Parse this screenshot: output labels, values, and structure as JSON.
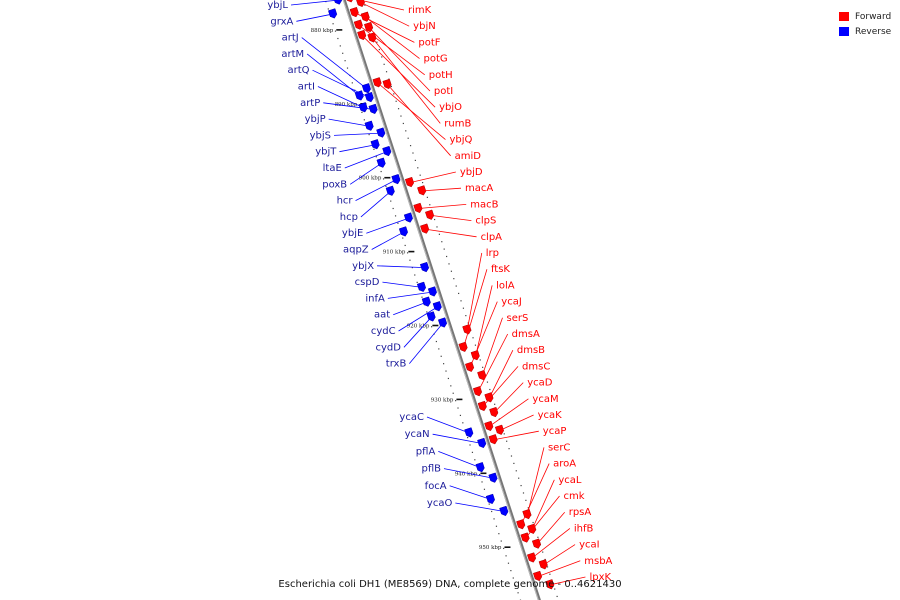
{
  "legend": {
    "forward_label": "Forward",
    "reverse_label": "Reverse",
    "forward_color": "#ff0000",
    "reverse_color": "#0000ff"
  },
  "caption": "Escherichia coli DH1 (ME8569) DNA, complete genome - 0..4621430",
  "chart_data": {
    "type": "genome-map",
    "range_kbp": [
      876,
      958
    ],
    "ticks_kbp": [
      880,
      890,
      900,
      910,
      920,
      930,
      940,
      950
    ],
    "tick_labels": [
      "880 kbp",
      "890 kbp",
      "900 kbp",
      "910 kbp",
      "920 kbp",
      "930 kbp",
      "940 kbp",
      "950 kbp"
    ],
    "forward_genes": [
      {
        "name": "rimK",
        "kbp": 876.5
      },
      {
        "name": "ybjN",
        "kbp": 877.5
      },
      {
        "name": "potF",
        "kbp": 878.5
      },
      {
        "name": "potG",
        "kbp": 879.5
      },
      {
        "name": "potH",
        "kbp": 880.2
      },
      {
        "name": "potI",
        "kbp": 880.9
      },
      {
        "name": "ybjO",
        "kbp": 881.6
      },
      {
        "name": "rumB",
        "kbp": 882.3
      },
      {
        "name": "ybjQ",
        "kbp": 888.0
      },
      {
        "name": "amiD",
        "kbp": 888.6
      },
      {
        "name": "ybjD",
        "kbp": 901.5
      },
      {
        "name": "macA",
        "kbp": 903.0
      },
      {
        "name": "macB",
        "kbp": 905.0
      },
      {
        "name": "clpS",
        "kbp": 906.3
      },
      {
        "name": "clpA",
        "kbp": 907.8
      },
      {
        "name": "lrp",
        "kbp": 921.8
      },
      {
        "name": "ftsK",
        "kbp": 923.8
      },
      {
        "name": "lolA",
        "kbp": 925.3
      },
      {
        "name": "ycaJ",
        "kbp": 926.5
      },
      {
        "name": "serS",
        "kbp": 928.0
      },
      {
        "name": "dmsA",
        "kbp": 929.8
      },
      {
        "name": "dmsB",
        "kbp": 931.0
      },
      {
        "name": "dmsC",
        "kbp": 931.8
      },
      {
        "name": "ycaD",
        "kbp": 933.0
      },
      {
        "name": "ycaM",
        "kbp": 934.5
      },
      {
        "name": "ycaK",
        "kbp": 935.4
      },
      {
        "name": "ycaP",
        "kbp": 936.3
      },
      {
        "name": "serC",
        "kbp": 946.8
      },
      {
        "name": "aroA",
        "kbp": 947.8
      },
      {
        "name": "ycaL",
        "kbp": 948.8
      },
      {
        "name": "cmk",
        "kbp": 949.6
      },
      {
        "name": "rpsA",
        "kbp": 950.8
      },
      {
        "name": "ihfB",
        "kbp": 952.3
      },
      {
        "name": "ycaI",
        "kbp": 953.6
      },
      {
        "name": "msbA",
        "kbp": 954.8
      },
      {
        "name": "lpxK",
        "kbp": 956.3
      }
    ],
    "reverse_genes": [
      {
        "name": "ybjL",
        "kbp": 876.3
      },
      {
        "name": "grxA",
        "kbp": 877.8
      },
      {
        "name": "artJ",
        "kbp": 888.3
      },
      {
        "name": "artM",
        "kbp": 888.9
      },
      {
        "name": "artQ",
        "kbp": 889.5
      },
      {
        "name": "artI",
        "kbp": 890.5
      },
      {
        "name": "artP",
        "kbp": 891.1
      },
      {
        "name": "ybjP",
        "kbp": 893.0
      },
      {
        "name": "ybjS",
        "kbp": 894.3
      },
      {
        "name": "ybjT",
        "kbp": 895.5
      },
      {
        "name": "ltaE",
        "kbp": 896.8
      },
      {
        "name": "poxB",
        "kbp": 898.0
      },
      {
        "name": "hcr",
        "kbp": 900.6
      },
      {
        "name": "hcp",
        "kbp": 901.8
      },
      {
        "name": "ybjE",
        "kbp": 905.8
      },
      {
        "name": "aqpZ",
        "kbp": 907.3
      },
      {
        "name": "ybjX",
        "kbp": 912.5
      },
      {
        "name": "cspD",
        "kbp": 914.8
      },
      {
        "name": "infA",
        "kbp": 915.8
      },
      {
        "name": "aat",
        "kbp": 916.8
      },
      {
        "name": "cydC",
        "kbp": 917.8
      },
      {
        "name": "cydD",
        "kbp": 918.8
      },
      {
        "name": "trxB",
        "kbp": 920.0
      },
      {
        "name": "ycaC",
        "kbp": 934.5
      },
      {
        "name": "ycaN",
        "kbp": 936.3
      },
      {
        "name": "pflA",
        "kbp": 939.2
      },
      {
        "name": "pflB",
        "kbp": 941.0
      },
      {
        "name": "focA",
        "kbp": 943.5
      },
      {
        "name": "ycaO",
        "kbp": 945.5
      }
    ]
  }
}
